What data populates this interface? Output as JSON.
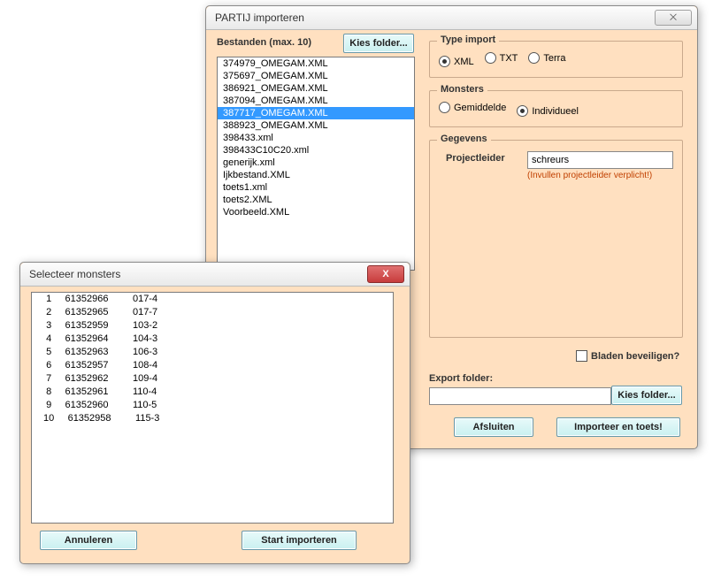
{
  "mainWindow": {
    "title": "PARTIJ importeren",
    "closeGlyph": "⨉",
    "bestanden": {
      "label": "Bestanden (max. 10)",
      "kiesFolder": "Kies folder...",
      "files": [
        "374979_OMEGAM.XML",
        "375697_OMEGAM.XML",
        "386921_OMEGAM.XML",
        "387094_OMEGAM.XML",
        "387717_OMEGAM.XML",
        "388923_OMEGAM.XML",
        "398433.xml",
        "398433C10C20.xml",
        "generijk.xml",
        "Ijkbestand.XML",
        "toets1.xml",
        "toets2.XML",
        "Voorbeeld.XML"
      ],
      "selectedIndex": 4
    },
    "typeImport": {
      "legend": "Type import",
      "options": [
        {
          "label": "XML",
          "checked": true
        },
        {
          "label": "TXT",
          "checked": false
        },
        {
          "label": "Terra",
          "checked": false
        }
      ]
    },
    "monsters": {
      "legend": "Monsters",
      "options": [
        {
          "label": "Gemiddelde",
          "checked": false
        },
        {
          "label": "Individueel",
          "checked": true
        }
      ]
    },
    "gegevens": {
      "legend": "Gegevens",
      "projectleiderLabel": "Projectleider",
      "projectleiderValue": "schreurs",
      "hint": "(Invullen projectleider verplicht!)"
    },
    "bladenBeveiligen": "Bladen beveiligen?",
    "exportFolderLabel": "Export folder:",
    "exportFolderValue": "",
    "kiesFolder2": "Kies folder...",
    "afsluiten": "Afsluiten",
    "importeer": "Importeer en toets!"
  },
  "monsterWindow": {
    "title": "Selecteer monsters",
    "closeGlyph": "X",
    "rows": [
      {
        "n": "1",
        "code": "61352966",
        "id": "017-4"
      },
      {
        "n": "2",
        "code": "61352965",
        "id": "017-7"
      },
      {
        "n": "3",
        "code": "61352959",
        "id": "103-2"
      },
      {
        "n": "4",
        "code": "61352964",
        "id": "104-3"
      },
      {
        "n": "5",
        "code": "61352963",
        "id": "106-3"
      },
      {
        "n": "6",
        "code": "61352957",
        "id": "108-4"
      },
      {
        "n": "7",
        "code": "61352962",
        "id": "109-4"
      },
      {
        "n": "8",
        "code": "61352961",
        "id": "110-4"
      },
      {
        "n": "9",
        "code": "61352960",
        "id": "110-5"
      },
      {
        "n": "10",
        "code": "61352958",
        "id": "115-3"
      }
    ],
    "annuleren": "Annuleren",
    "startImporteren": "Start importeren"
  }
}
